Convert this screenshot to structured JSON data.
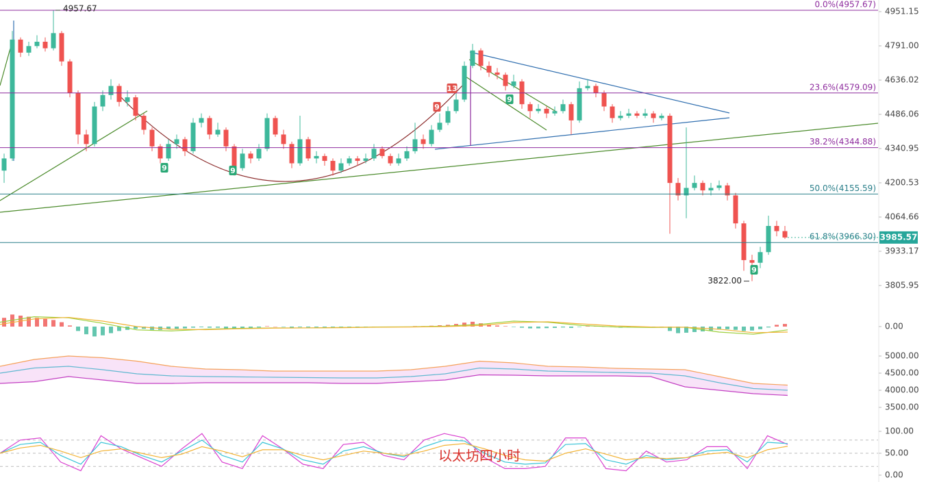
{
  "chart_data": [
    {
      "type": "candlestick",
      "log": true,
      "up_color": "#3db89b",
      "down_color": "#ef5350",
      "ylim": [
        3748.8,
        5006.8
      ],
      "yticks": [
        4951.15,
        {
          "value": 4791,
          "label": "4791.00"
        },
        4636.02,
        4486.06,
        4340.95,
        4200.53,
        4064.66,
        3933.17,
        3805.95
      ],
      "open": [
        4250,
        4300,
        4820,
        4760,
        4790,
        4810,
        4780,
        4850,
        4720,
        4580,
        4400,
        4360,
        4520,
        4570,
        4610,
        4540,
        4560,
        4480,
        4420,
        4350,
        4300,
        4360,
        4380,
        4330,
        4450,
        4470,
        4400,
        4420,
        4350,
        4260,
        4320,
        4300,
        4340,
        4470,
        4400,
        4360,
        4280,
        4380,
        4300,
        4310,
        4290,
        4250,
        4280,
        4300,
        4290,
        4300,
        4340,
        4310,
        4280,
        4300,
        4330,
        4380,
        4360,
        4420,
        4450,
        4500,
        4550,
        4700,
        4770,
        4700,
        4670,
        4660,
        4610,
        4630,
        4530,
        4500,
        4510,
        4490,
        4500,
        4530,
        4460,
        4600,
        4610,
        4580,
        4520,
        4470,
        4480,
        4490,
        4480,
        4490,
        4470,
        4480,
        4200,
        4150,
        4180,
        4200,
        4170,
        4180,
        4190,
        4150,
        4040,
        3900,
        3890,
        3930,
        4030,
        4010
      ],
      "high": [
        4320,
        4860,
        4830,
        4810,
        4840,
        4830,
        4957.67,
        4860,
        4730,
        4590,
        4420,
        4540,
        4590,
        4640,
        4620,
        4590,
        4570,
        4490,
        4430,
        4360,
        4380,
        4400,
        4390,
        4470,
        4490,
        4480,
        4450,
        4430,
        4360,
        4340,
        4330,
        4360,
        4490,
        4480,
        4420,
        4370,
        4480,
        4390,
        4330,
        4320,
        4300,
        4300,
        4310,
        4310,
        4320,
        4360,
        4350,
        4320,
        4320,
        4350,
        4450,
        4400,
        4440,
        4490,
        4520,
        4580,
        4720,
        4800,
        4780,
        4720,
        4690,
        4670,
        4660,
        4640,
        4540,
        4530,
        4520,
        4520,
        4550,
        4540,
        4630,
        4640,
        4620,
        4590,
        4530,
        4500,
        4510,
        4500,
        4510,
        4500,
        4490,
        4490,
        4220,
        4430,
        4230,
        4210,
        4200,
        4210,
        4200,
        4160,
        4050,
        3920,
        3950,
        4070,
        4050,
        4030
      ],
      "low": [
        4200,
        4290,
        4740,
        4745,
        4780,
        4765,
        4770,
        4700,
        4560,
        4360,
        4330,
        4350,
        4500,
        4550,
        4520,
        4520,
        4460,
        4400,
        4330,
        4280,
        4290,
        4340,
        4310,
        4320,
        4430,
        4380,
        4390,
        4330,
        4230,
        4250,
        4280,
        4290,
        4330,
        4390,
        4340,
        4260,
        4270,
        4290,
        4280,
        4270,
        4230,
        4240,
        4270,
        4270,
        4280,
        4290,
        4300,
        4270,
        4270,
        4290,
        4320,
        4340,
        4350,
        4410,
        4440,
        4490,
        4540,
        4690,
        4680,
        4650,
        4640,
        4590,
        4600,
        4510,
        4470,
        4490,
        4470,
        4480,
        4490,
        4400,
        4450,
        4590,
        4560,
        4500,
        4450,
        4460,
        4470,
        4470,
        4470,
        4450,
        4460,
        4000,
        4130,
        4060,
        4170,
        4150,
        4150,
        4170,
        4130,
        4020,
        3860,
        3822,
        3870,
        3920,
        3990,
        3980
      ],
      "close": [
        4300,
        4820,
        4760,
        4790,
        4810,
        4780,
        4850,
        4720,
        4580,
        4400,
        4360,
        4520,
        4570,
        4610,
        4540,
        4560,
        4480,
        4420,
        4350,
        4300,
        4360,
        4380,
        4330,
        4450,
        4470,
        4400,
        4420,
        4350,
        4260,
        4320,
        4300,
        4340,
        4470,
        4400,
        4360,
        4280,
        4380,
        4300,
        4310,
        4290,
        4250,
        4280,
        4300,
        4290,
        4300,
        4340,
        4310,
        4280,
        4300,
        4330,
        4380,
        4360,
        4420,
        4450,
        4500,
        4550,
        4700,
        4770,
        4700,
        4670,
        4660,
        4610,
        4630,
        4530,
        4500,
        4510,
        4490,
        4500,
        4530,
        4460,
        4600,
        4610,
        4580,
        4520,
        4470,
        4480,
        4490,
        4480,
        4490,
        4470,
        4480,
        4200,
        4150,
        4180,
        4200,
        4170,
        4180,
        4190,
        4150,
        4040,
        3900,
        3890,
        3930,
        4030,
        4010,
        3985.57
      ],
      "fib_levels": [
        {
          "label": "0.0%(4957.67)",
          "value": 4957.67,
          "color": "#8e2c9e"
        },
        {
          "label": "23.6%(4579.09)",
          "value": 4579.09,
          "color": "#8e2c9e"
        },
        {
          "label": "38.2%(4344.88)",
          "value": 4344.88,
          "color": "#8e2c9e"
        },
        {
          "label": "50.0%(4155.59)",
          "value": 4155.59,
          "color": "#2a7f8a"
        },
        {
          "label": "61.8%(3966.30)",
          "value": 3966.3,
          "color": "#2a7f8a"
        }
      ],
      "high_label": 4957.67,
      "low_label": {
        "value": 3822,
        "label": "3822.00"
      },
      "last_price": 3985.57,
      "td_markers": [
        "9",
        "9",
        "9",
        "13",
        "9",
        "9"
      ]
    },
    {
      "type": "macd",
      "up_color": "#ef5350",
      "down_color": "#3db89b",
      "ylim": [
        -100,
        100
      ],
      "yticks": [
        {
          "value": 0,
          "label": "0.00"
        }
      ],
      "values": [
        40,
        55,
        50,
        45,
        40,
        35,
        30,
        20,
        5,
        -20,
        -35,
        -45,
        -40,
        -30,
        -20,
        -15,
        -10,
        -10,
        -15,
        -15,
        -12,
        -10,
        -8,
        -5,
        -3,
        -5,
        -5,
        -8,
        -10,
        -8,
        -6,
        -4,
        2,
        0,
        -2,
        -5,
        -3,
        -4,
        -4,
        -6,
        -6,
        -4,
        -3,
        -2,
        -1,
        0,
        -1,
        -2,
        -1,
        0,
        2,
        2,
        4,
        6,
        8,
        12,
        18,
        22,
        15,
        10,
        5,
        2,
        -2,
        -5,
        -8,
        -8,
        -7,
        -6,
        -4,
        -6,
        -2,
        2,
        2,
        0,
        -3,
        -5,
        -4,
        -3,
        -2,
        -2,
        -2,
        -20,
        -30,
        -28,
        -25,
        -22,
        -18,
        -14,
        -12,
        -15,
        -20,
        -18,
        -12,
        -4,
        8,
        12
      ],
      "series": [
        {
          "color": "#9ccf3a",
          "values": [
            20,
            45,
            40,
            15,
            -15,
            -20,
            -12,
            -8,
            -6,
            -6,
            -4,
            -2,
            -1,
            2,
            10,
            25,
            20,
            5,
            -2,
            -4,
            -3,
            -25,
            -35,
            -15
          ]
        },
        {
          "color": "#f2b233",
          "values": [
            10,
            35,
            42,
            25,
            0,
            -12,
            -14,
            -10,
            -7,
            -6,
            -5,
            -3,
            -2,
            0,
            5,
            18,
            22,
            12,
            3,
            -2,
            -3,
            -12,
            -28,
            -25
          ]
        }
      ]
    },
    {
      "type": "bollinger",
      "band_color": "#f6dcf6",
      "ylim": [
        3300,
        5300
      ],
      "yticks": [
        {
          "value": 5000,
          "label": "5000.00"
        },
        {
          "value": 4500,
          "label": "4500.00"
        },
        {
          "value": 4000,
          "label": "4000.00"
        },
        {
          "value": 3500,
          "label": "3500.00"
        }
      ],
      "series": [
        {
          "color": "#f5a15a",
          "values": [
            4700,
            4900,
            5000,
            4950,
            4850,
            4700,
            4620,
            4600,
            4560,
            4560,
            4560,
            4560,
            4600,
            4700,
            4850,
            4800,
            4700,
            4680,
            4640,
            4620,
            4600,
            4400,
            4200,
            4150
          ]
        },
        {
          "color": "#5fb8d0",
          "values": [
            4500,
            4650,
            4700,
            4600,
            4480,
            4420,
            4400,
            4390,
            4380,
            4370,
            4360,
            4360,
            4400,
            4480,
            4650,
            4620,
            4560,
            4540,
            4520,
            4500,
            4420,
            4220,
            4050,
            4000
          ]
        },
        {
          "color": "#c23ec2",
          "values": [
            4200,
            4250,
            4400,
            4300,
            4200,
            4200,
            4220,
            4220,
            4220,
            4220,
            4200,
            4200,
            4250,
            4300,
            4450,
            4440,
            4420,
            4420,
            4420,
            4400,
            4100,
            4000,
            3900,
            3850
          ]
        }
      ]
    },
    {
      "type": "kdj",
      "ylim": [
        -15.6,
        115.6
      ],
      "ref_levels": [
        80,
        50,
        20
      ],
      "yticks": [
        {
          "value": 100,
          "label": "100.00"
        },
        {
          "value": 50,
          "label": "50.00"
        },
        {
          "value": 0,
          "label": "0.00"
        }
      ],
      "series": [
        {
          "color": "#d940d0",
          "values": [
            50,
            80,
            85,
            30,
            10,
            90,
            60,
            40,
            20,
            60,
            95,
            30,
            15,
            90,
            60,
            25,
            15,
            70,
            75,
            45,
            35,
            80,
            95,
            85,
            40,
            15,
            15,
            20,
            85,
            85,
            15,
            10,
            55,
            30,
            35,
            65,
            65,
            15,
            90,
            70
          ]
        },
        {
          "color": "#36c3d6",
          "values": [
            50,
            70,
            75,
            45,
            25,
            75,
            65,
            45,
            30,
            55,
            80,
            45,
            30,
            75,
            60,
            35,
            25,
            55,
            65,
            50,
            42,
            65,
            80,
            78,
            50,
            30,
            25,
            28,
            70,
            72,
            35,
            25,
            45,
            35,
            40,
            55,
            58,
            30,
            75,
            72
          ]
        },
        {
          "color": "#f2b233",
          "values": [
            50,
            62,
            68,
            55,
            40,
            55,
            60,
            50,
            40,
            48,
            65,
            55,
            42,
            58,
            58,
            45,
            35,
            45,
            55,
            50,
            45,
            55,
            68,
            72,
            60,
            45,
            35,
            32,
            50,
            60,
            48,
            35,
            40,
            38,
            40,
            48,
            52,
            40,
            58,
            66
          ]
        }
      ]
    }
  ],
  "watermark": "以太坊四小时"
}
